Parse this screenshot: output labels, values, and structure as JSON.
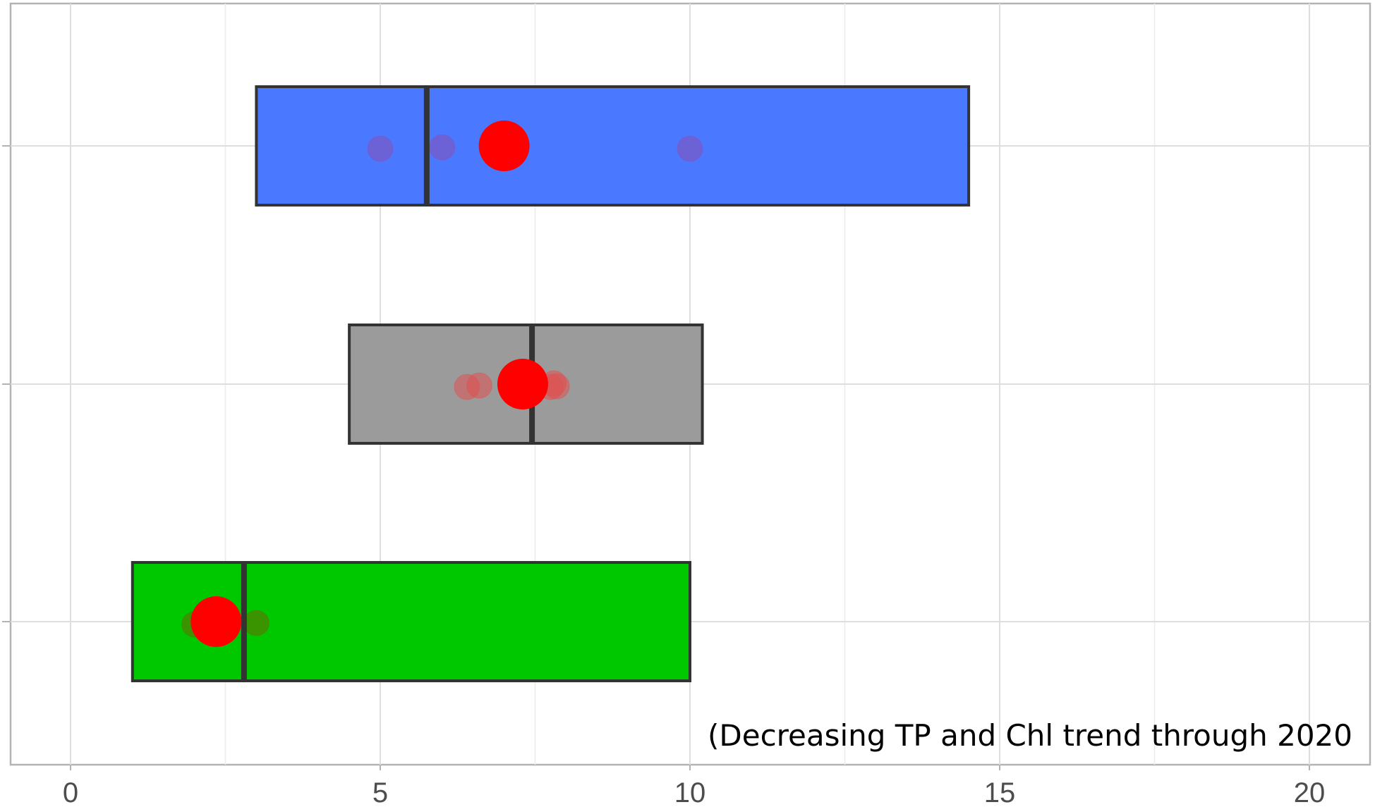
{
  "chart_data": {
    "type": "boxplot",
    "orientation": "horizontal",
    "title": "",
    "xlabel": "",
    "ylabel": "",
    "xlim": [
      -1,
      21
    ],
    "x_ticks": [
      0,
      5,
      10,
      15,
      20
    ],
    "x_tick_labels": [
      "0",
      "5",
      "10",
      "15",
      "20"
    ],
    "grid": true,
    "annotation": "(Decreasing TP and Chl trend through 2020",
    "series": [
      {
        "color": "#4a78ff",
        "box": {
          "q1": 3.0,
          "median": 5.75,
          "q3": 14.5
        },
        "points": [
          5.0,
          6.0,
          10.0
        ],
        "point_color": "#8b4fb5",
        "highlight": 7.0
      },
      {
        "color": "#9b9b9b",
        "box": {
          "q1": 4.5,
          "median": 7.45,
          "q3": 10.2
        },
        "points": [
          6.4,
          6.6,
          7.75,
          7.8,
          7.85
        ],
        "point_color": "#e05050",
        "highlight": 7.3
      },
      {
        "color": "#00c800",
        "box": {
          "q1": 1.0,
          "median": 2.8,
          "q3": 10.0
        },
        "points": [
          2.0,
          3.0
        ],
        "point_color": "#6a6a00",
        "highlight": 2.35
      }
    ],
    "highlight_color": "#ff0000",
    "box_edge_color": "#333333"
  }
}
